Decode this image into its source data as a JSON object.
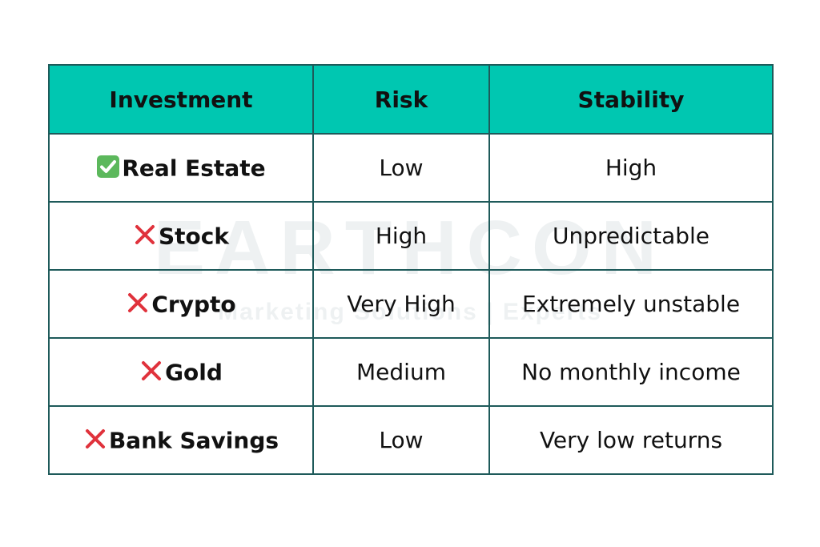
{
  "watermark": {
    "brand": "EARTHCON",
    "tagline": "Marketing Solutions | Experts"
  },
  "table": {
    "headers": [
      "Investment",
      "Risk",
      "Stability"
    ],
    "rows": [
      {
        "investment": "Real Estate",
        "mark": "check-icon",
        "risk": "Low",
        "stability": "High"
      },
      {
        "investment": "Stock",
        "mark": "cross-icon",
        "risk": "High",
        "stability": "Unpredictable"
      },
      {
        "investment": "Crypto",
        "mark": "cross-icon",
        "risk": "Very High",
        "stability": "Extremely unstable"
      },
      {
        "investment": "Gold",
        "mark": "cross-icon",
        "risk": "Medium",
        "stability": "No monthly income"
      },
      {
        "investment": "Bank Savings",
        "mark": "cross-icon",
        "risk": "Low",
        "stability": "Very low returns"
      }
    ]
  },
  "colors": {
    "header_bg": "#00c7b1",
    "border": "#1e5a5a",
    "check": "#5cb85c",
    "cross": "#e0323c"
  }
}
